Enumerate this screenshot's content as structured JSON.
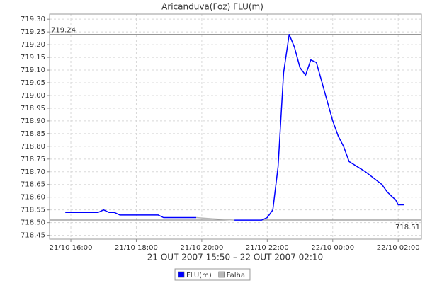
{
  "chart_data": {
    "type": "line",
    "title": "Aricanduva(Foz) FLU(m)",
    "x_label": "21 OUT 2007 15:50 – 22 OUT 2007 02:10",
    "x": [
      15.83,
      16.83,
      17.0,
      17.17,
      17.33,
      17.5,
      18.67,
      18.83,
      19.83,
      20.33,
      21.0,
      21.83,
      22.0,
      22.17,
      22.33,
      22.5,
      22.67,
      22.83,
      23.0,
      23.17,
      23.33,
      23.5,
      24.0,
      24.17,
      24.33,
      24.5,
      25.0,
      25.5,
      25.67,
      25.83,
      25.92,
      26.0,
      26.17
    ],
    "series": [
      {
        "name": "FLU(m)",
        "color": "#0000ff",
        "values": [
          718.54,
          718.54,
          718.55,
          718.54,
          718.54,
          718.53,
          718.53,
          718.52,
          718.52,
          null,
          718.51,
          718.51,
          718.52,
          718.55,
          718.72,
          719.09,
          719.24,
          719.19,
          719.11,
          719.08,
          719.14,
          719.13,
          718.9,
          718.84,
          718.8,
          718.74,
          718.7,
          718.65,
          718.62,
          718.6,
          718.59,
          718.57,
          718.57
        ]
      },
      {
        "name": "Falha",
        "color": "#b8b8b8",
        "values": [
          null,
          null,
          null,
          null,
          null,
          null,
          null,
          null,
          718.52,
          718.515,
          718.51,
          null,
          null,
          null,
          null,
          null,
          null,
          null,
          null,
          null,
          null,
          null,
          null,
          null,
          null,
          null,
          null,
          null,
          null,
          null,
          null,
          null,
          null
        ]
      }
    ],
    "reference_lines": [
      719.24,
      718.51
    ],
    "xlim": [
      15.35,
      26.71
    ],
    "xticks": [
      {
        "value": 16,
        "label": "21/10 16:00"
      },
      {
        "value": 18,
        "label": "21/10 18:00"
      },
      {
        "value": 20,
        "label": "21/10 20:00"
      },
      {
        "value": 22,
        "label": "21/10 22:00"
      },
      {
        "value": 24,
        "label": "22/10 00:00"
      },
      {
        "value": 26,
        "label": "22/10 02:00"
      }
    ],
    "ylim": [
      718.435,
      719.32
    ],
    "yticks": [
      718.45,
      {
        "value": 718.5,
        "label": "718.50"
      },
      718.55,
      {
        "value": 718.6,
        "label": "718.60"
      },
      718.65,
      {
        "value": 718.7,
        "label": "718.70"
      },
      718.75,
      {
        "value": 718.8,
        "label": "718.80"
      },
      718.85,
      {
        "value": 718.9,
        "label": "718.90"
      },
      718.95,
      {
        "value": 719.0,
        "label": "719.00"
      },
      719.05,
      {
        "value": 719.1,
        "label": "719.10"
      },
      719.15,
      {
        "value": 719.2,
        "label": "719.20"
      },
      719.25,
      {
        "value": 719.3,
        "label": "719.30"
      }
    ],
    "grid": true
  }
}
